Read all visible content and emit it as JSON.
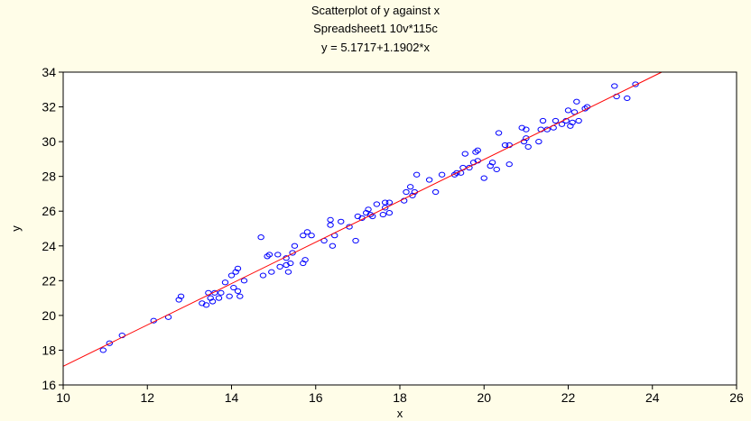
{
  "chart_data": {
    "type": "scatter",
    "title": "Scatterplot of y against x",
    "subtitle": "Spreadsheet1 10v*115c",
    "fit_label": "y = 5.1717+1.1902*x",
    "xlabel": "x",
    "ylabel": "y",
    "xlim": [
      10,
      26
    ],
    "ylim": [
      16,
      34
    ],
    "xticks": [
      10,
      12,
      14,
      16,
      18,
      20,
      22,
      24,
      26
    ],
    "yticks": [
      16,
      18,
      20,
      22,
      24,
      26,
      28,
      30,
      32,
      34
    ],
    "grid": false,
    "regression": {
      "intercept": 5.1717,
      "slope": 1.1902
    },
    "marker_color": "#0000ff",
    "line_color": "#ff0000",
    "points": [
      [
        10.95,
        18.0
      ],
      [
        11.1,
        18.4
      ],
      [
        11.4,
        18.85
      ],
      [
        12.15,
        19.7
      ],
      [
        12.5,
        19.9
      ],
      [
        12.75,
        20.9
      ],
      [
        12.8,
        21.1
      ],
      [
        13.3,
        20.7
      ],
      [
        13.4,
        20.6
      ],
      [
        13.45,
        21.3
      ],
      [
        13.5,
        21.0
      ],
      [
        13.55,
        20.8
      ],
      [
        13.6,
        21.3
      ],
      [
        13.7,
        21.0
      ],
      [
        13.75,
        21.3
      ],
      [
        13.85,
        21.9
      ],
      [
        13.95,
        21.1
      ],
      [
        14.0,
        22.3
      ],
      [
        14.05,
        21.6
      ],
      [
        14.1,
        22.5
      ],
      [
        14.15,
        22.7
      ],
      [
        14.15,
        21.4
      ],
      [
        14.2,
        21.1
      ],
      [
        14.3,
        22.0
      ],
      [
        14.7,
        24.5
      ],
      [
        14.75,
        22.3
      ],
      [
        14.85,
        23.4
      ],
      [
        14.9,
        23.5
      ],
      [
        14.95,
        22.5
      ],
      [
        15.1,
        23.5
      ],
      [
        15.15,
        22.8
      ],
      [
        15.3,
        22.9
      ],
      [
        15.3,
        23.3
      ],
      [
        15.35,
        22.5
      ],
      [
        15.4,
        23.0
      ],
      [
        15.45,
        23.6
      ],
      [
        15.5,
        24.0
      ],
      [
        15.7,
        23.0
      ],
      [
        15.7,
        24.6
      ],
      [
        15.75,
        23.2
      ],
      [
        15.8,
        24.8
      ],
      [
        15.9,
        24.6
      ],
      [
        16.2,
        24.3
      ],
      [
        16.35,
        25.5
      ],
      [
        16.35,
        25.2
      ],
      [
        16.4,
        24.0
      ],
      [
        16.45,
        24.6
      ],
      [
        16.6,
        25.4
      ],
      [
        16.8,
        25.1
      ],
      [
        16.95,
        24.3
      ],
      [
        17.0,
        25.7
      ],
      [
        17.1,
        25.6
      ],
      [
        17.2,
        25.9
      ],
      [
        17.25,
        26.1
      ],
      [
        17.3,
        25.8
      ],
      [
        17.35,
        25.7
      ],
      [
        17.45,
        26.4
      ],
      [
        17.6,
        25.8
      ],
      [
        17.65,
        26.2
      ],
      [
        17.65,
        26.5
      ],
      [
        17.75,
        25.9
      ],
      [
        17.75,
        26.5
      ],
      [
        18.1,
        26.6
      ],
      [
        18.15,
        27.1
      ],
      [
        18.25,
        27.4
      ],
      [
        18.3,
        26.9
      ],
      [
        18.35,
        27.1
      ],
      [
        18.4,
        28.1
      ],
      [
        18.7,
        27.8
      ],
      [
        18.85,
        27.1
      ],
      [
        19.0,
        28.1
      ],
      [
        19.3,
        28.1
      ],
      [
        19.35,
        28.2
      ],
      [
        19.45,
        28.2
      ],
      [
        19.5,
        28.5
      ],
      [
        19.55,
        29.3
      ],
      [
        19.65,
        28.5
      ],
      [
        19.75,
        28.8
      ],
      [
        19.8,
        29.4
      ],
      [
        19.85,
        29.5
      ],
      [
        19.85,
        28.9
      ],
      [
        20.0,
        27.9
      ],
      [
        20.15,
        28.6
      ],
      [
        20.2,
        28.8
      ],
      [
        20.3,
        28.4
      ],
      [
        20.35,
        30.5
      ],
      [
        20.5,
        29.8
      ],
      [
        20.6,
        28.7
      ],
      [
        20.6,
        29.8
      ],
      [
        20.9,
        30.8
      ],
      [
        20.95,
        30.0
      ],
      [
        21.0,
        30.2
      ],
      [
        21.0,
        30.7
      ],
      [
        21.05,
        29.7
      ],
      [
        21.3,
        30.0
      ],
      [
        21.35,
        30.7
      ],
      [
        21.4,
        31.2
      ],
      [
        21.5,
        30.7
      ],
      [
        21.65,
        30.8
      ],
      [
        21.7,
        31.2
      ],
      [
        21.85,
        31.0
      ],
      [
        21.95,
        31.2
      ],
      [
        22.0,
        31.8
      ],
      [
        22.05,
        30.9
      ],
      [
        22.1,
        31.1
      ],
      [
        22.15,
        31.7
      ],
      [
        22.2,
        32.3
      ],
      [
        22.25,
        31.2
      ],
      [
        22.4,
        31.9
      ],
      [
        22.45,
        32.0
      ],
      [
        23.1,
        33.2
      ],
      [
        23.15,
        32.6
      ],
      [
        23.4,
        32.5
      ],
      [
        23.6,
        33.3
      ]
    ]
  }
}
